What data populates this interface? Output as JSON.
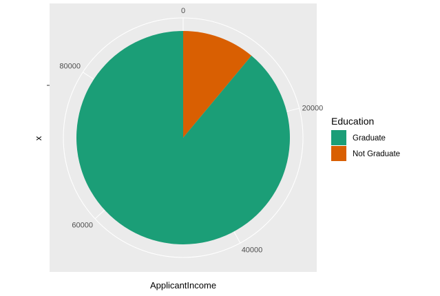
{
  "chart_data": {
    "type": "pie",
    "coord": "polar",
    "theta_variable": "ApplicantIncome",
    "xlabel": "ApplicantIncome",
    "ylabel": "x",
    "theta_max": 95000,
    "theta_ticks": [
      0,
      20000,
      40000,
      60000,
      80000
    ],
    "theta_tick_labels": [
      "0",
      "20000",
      "40000",
      "60000",
      "80000"
    ],
    "slices": [
      {
        "name": "Not Graduate",
        "value": 10500,
        "color": "#D95F02"
      },
      {
        "name": "Graduate",
        "value": 84500,
        "color": "#1B9E77"
      }
    ],
    "legend": {
      "title": "Education",
      "placement": "right",
      "entries": [
        {
          "label": "Graduate",
          "color": "#1B9E77"
        },
        {
          "label": "Not Graduate",
          "color": "#D95F02"
        }
      ]
    },
    "panel_background": "#EBEBEB",
    "grid_color": "#FFFFFF",
    "grid": true
  }
}
